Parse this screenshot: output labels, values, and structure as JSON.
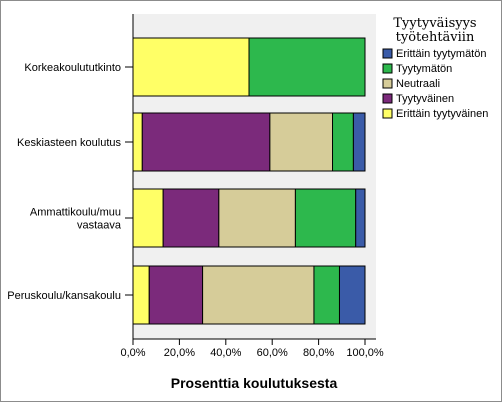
{
  "chart_data": {
    "type": "bar",
    "orientation": "horizontal",
    "stacked": true,
    "categories": [
      "Korkeakoulututkinto",
      "Keskiasteen koulutus",
      "Ammattikoulu/muu vastaava",
      "Peruskoulu/kansakoulu"
    ],
    "category_lines": [
      [
        "Korkeakoulututkinto"
      ],
      [
        "Keskiasteen koulutus"
      ],
      [
        "Ammattikoulu/muu",
        "vastaava"
      ],
      [
        "Peruskoulu/kansakoulu"
      ]
    ],
    "series": [
      {
        "name": "Erittäin tyytyväinen",
        "color": "#ffff66",
        "values": [
          50,
          4,
          13,
          7
        ]
      },
      {
        "name": "Tyytyväinen",
        "color": "#7b2a7b",
        "values": [
          0,
          55,
          24,
          23
        ]
      },
      {
        "name": "Neutraali",
        "color": "#d6cc99",
        "values": [
          0,
          27,
          33,
          48
        ]
      },
      {
        "name": "Tyytymätön",
        "color": "#2db84d",
        "values": [
          50,
          9,
          26,
          11
        ]
      },
      {
        "name": "Erittäin tyytymätön",
        "color": "#3a5ba8",
        "values": [
          0,
          5,
          4,
          11
        ]
      }
    ],
    "legend": {
      "title_lines": [
        "Tyytyväisyys",
        "työtehtäviin"
      ],
      "order": [
        "Erittäin tyytymätön",
        "Tyytymätön",
        "Neutraali",
        "Tyytyväinen",
        "Erittäin tyytyväinen"
      ],
      "position": "right"
    },
    "xlabel": "Prosenttia koulutuksesta",
    "xlim": [
      0,
      100
    ],
    "xticks": [
      0,
      20,
      40,
      60,
      80,
      100
    ],
    "xtick_labels": [
      "0,0%",
      "20,0%",
      "40,0%",
      "60,0%",
      "80,0%",
      "100,0%"
    ],
    "plot_background": "#f0f0f0",
    "grid": false
  }
}
